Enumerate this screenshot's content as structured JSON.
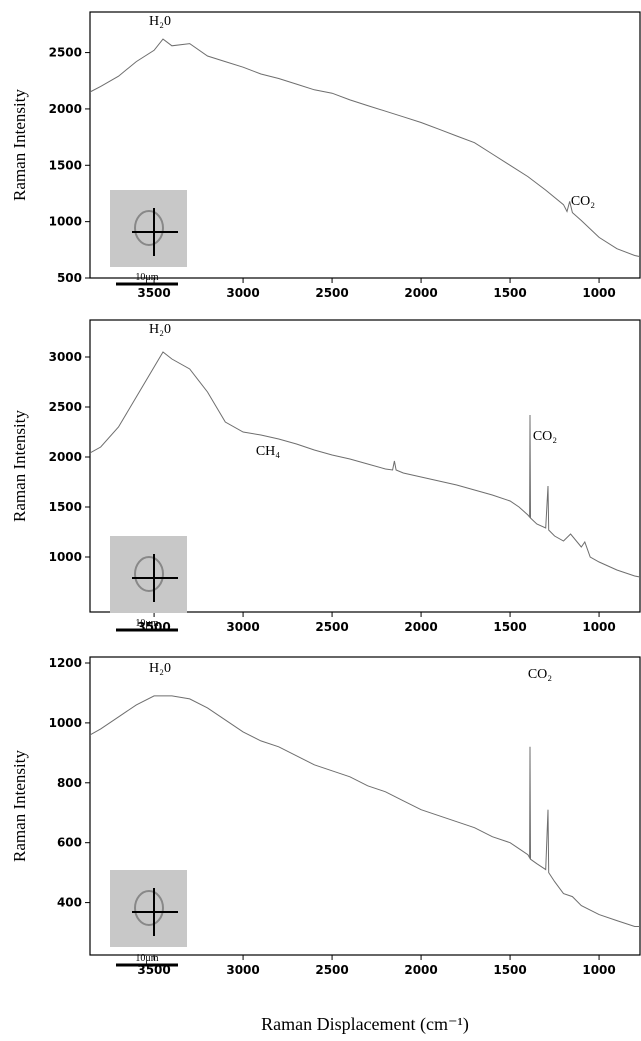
{
  "chart_data": [
    {
      "type": "line",
      "ylabel": "Raman Intensity",
      "color": "#6e6e6e",
      "x": [
        3860,
        3800,
        3700,
        3600,
        3500,
        3450,
        3400,
        3300,
        3200,
        3100,
        3000,
        2900,
        2800,
        2700,
        2600,
        2500,
        2400,
        2300,
        2200,
        2100,
        2000,
        1900,
        1800,
        1700,
        1600,
        1500,
        1400,
        1300,
        1200,
        1180,
        1165,
        1150,
        1100,
        1000,
        900,
        800,
        770
      ],
      "values": [
        2150,
        2200,
        2290,
        2420,
        2520,
        2620,
        2560,
        2580,
        2470,
        2420,
        2370,
        2310,
        2270,
        2220,
        2170,
        2140,
        2080,
        2030,
        1980,
        1930,
        1880,
        1820,
        1760,
        1700,
        1600,
        1500,
        1400,
        1280,
        1150,
        1090,
        1180,
        1080,
        1010,
        860,
        760,
        700,
        690
      ],
      "xlim": [
        3860,
        770
      ],
      "xticks": [
        3500,
        3000,
        2500,
        2000,
        1500,
        1000
      ],
      "ylim": [
        500,
        2860
      ],
      "yticks": [
        500,
        1000,
        1500,
        2000,
        2500
      ],
      "annotations": [
        "H₂0",
        "CO₂"
      ],
      "inset_label": "10μm"
    },
    {
      "type": "line",
      "ylabel": "Raman Intensity",
      "color": "#6e6e6e",
      "x": [
        3860,
        3800,
        3700,
        3600,
        3500,
        3450,
        3400,
        3300,
        3200,
        3100,
        3000,
        2900,
        2800,
        2700,
        2600,
        2500,
        2400,
        2300,
        2200,
        2160,
        2150,
        2140,
        2100,
        2000,
        1900,
        1800,
        1700,
        1600,
        1500,
        1450,
        1400,
        1390,
        1388,
        1385,
        1350,
        1300,
        1287,
        1283,
        1250,
        1200,
        1160,
        1100,
        1080,
        1050,
        1000,
        900,
        800,
        770
      ],
      "values": [
        2040,
        2100,
        2300,
        2600,
        2900,
        3050,
        2980,
        2880,
        2650,
        2350,
        2250,
        2220,
        2180,
        2130,
        2070,
        2020,
        1980,
        1930,
        1880,
        1870,
        1960,
        1870,
        1840,
        1800,
        1760,
        1720,
        1670,
        1620,
        1560,
        1500,
        1420,
        1400,
        2420,
        1390,
        1330,
        1290,
        1710,
        1270,
        1210,
        1160,
        1230,
        1100,
        1150,
        1000,
        950,
        870,
        810,
        800
      ],
      "xlim": [
        3860,
        770
      ],
      "xticks": [
        3500,
        3000,
        2500,
        2000,
        1500,
        1000
      ],
      "ylim": [
        450,
        3370
      ],
      "yticks": [
        1000,
        1500,
        2000,
        2500,
        3000
      ],
      "annotations": [
        "H₂0",
        "CH₄",
        "CO₂"
      ],
      "inset_label": "10μm"
    },
    {
      "type": "line",
      "ylabel": "Raman Intensity",
      "color": "#6e6e6e",
      "x": [
        3860,
        3800,
        3700,
        3600,
        3500,
        3400,
        3300,
        3200,
        3100,
        3000,
        2900,
        2800,
        2700,
        2600,
        2500,
        2400,
        2300,
        2200,
        2100,
        2000,
        1900,
        1800,
        1700,
        1600,
        1500,
        1450,
        1400,
        1390,
        1388,
        1385,
        1350,
        1300,
        1287,
        1283,
        1250,
        1200,
        1150,
        1100,
        1000,
        900,
        800,
        770
      ],
      "values": [
        960,
        980,
        1020,
        1060,
        1090,
        1090,
        1080,
        1050,
        1010,
        970,
        940,
        920,
        890,
        860,
        840,
        820,
        790,
        770,
        740,
        710,
        690,
        670,
        650,
        620,
        600,
        580,
        560,
        550,
        920,
        545,
        530,
        510,
        710,
        500,
        470,
        430,
        420,
        390,
        360,
        340,
        320,
        320
      ],
      "xlim": [
        3860,
        770
      ],
      "xticks": [
        3500,
        3000,
        2500,
        2000,
        1500,
        1000
      ],
      "ylim": [
        225,
        1220
      ],
      "yticks": [
        400,
        600,
        800,
        1000,
        1200
      ],
      "annotations": [
        "H₂0",
        "CO₂"
      ],
      "inset_label": "10μm",
      "xlabel": "Raman Displacement (cm⁻¹)"
    }
  ]
}
